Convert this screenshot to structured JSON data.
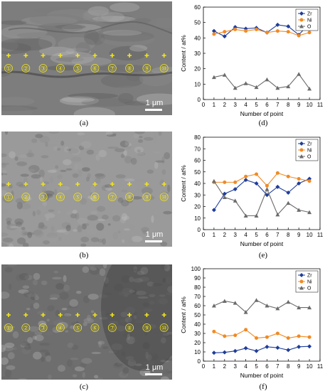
{
  "panel_labels": [
    "(a)",
    "(b)",
    "(c)",
    "(d)",
    "(e)",
    "(f)"
  ],
  "sem_images": [
    {
      "scale_bar": "1 μm",
      "point_labels": [
        "①",
        "②",
        "③",
        "④",
        "⑤",
        "⑥",
        "⑦",
        "⑧",
        "⑨",
        "⑩"
      ]
    },
    {
      "scale_bar": "1 μm",
      "point_labels": [
        "①",
        "②",
        "③",
        "④",
        "⑤",
        "⑥",
        "⑦",
        "⑧",
        "⑨",
        "⑩"
      ]
    },
    {
      "scale_bar": "1 μm",
      "point_labels": [
        "①",
        "②",
        "③",
        "④",
        "⑤",
        "⑥",
        "⑦",
        "⑧",
        "⑨",
        "⑩"
      ]
    }
  ],
  "colors": {
    "Zr": "#1f3d99",
    "Ni": "#f08a24",
    "O": "#6b6b6b",
    "marker": "#f2e51c"
  },
  "chart_data": [
    {
      "type": "line",
      "xlabel": "Number of point",
      "ylabel": "Content / at%",
      "xlim": [
        0,
        11
      ],
      "ylim": [
        0,
        60
      ],
      "xticks": [
        0,
        1,
        2,
        3,
        4,
        5,
        6,
        7,
        8,
        9,
        10,
        11
      ],
      "yticks": [
        0,
        10,
        20,
        30,
        40,
        50,
        60
      ],
      "legend_position": "top-right",
      "x": [
        1,
        2,
        3,
        4,
        5,
        6,
        7,
        8,
        9,
        10
      ],
      "series": [
        {
          "name": "Zr",
          "marker": "diamond",
          "values": [
            44.5,
            41,
            47,
            46,
            46.5,
            43.5,
            48.5,
            47.5,
            42,
            49.5
          ]
        },
        {
          "name": "Ni",
          "marker": "circle",
          "values": [
            42.5,
            44,
            45.5,
            44.5,
            45.5,
            43.5,
            44.5,
            44,
            41.5,
            43.5
          ]
        },
        {
          "name": "O",
          "marker": "triangle",
          "values": [
            14.5,
            16,
            7.5,
            10.5,
            8,
            13,
            7.5,
            8.5,
            16.5,
            7
          ]
        }
      ]
    },
    {
      "type": "line",
      "xlabel": "Number of point",
      "ylabel": "Content / at%",
      "xlim": [
        0,
        11
      ],
      "ylim": [
        0,
        80
      ],
      "xticks": [
        0,
        1,
        2,
        3,
        4,
        5,
        6,
        7,
        8,
        9,
        10,
        11
      ],
      "yticks": [
        0,
        10,
        20,
        30,
        40,
        50,
        60,
        70,
        80
      ],
      "legend_position": "top-right",
      "x": [
        1,
        2,
        3,
        4,
        5,
        6,
        7,
        8,
        9,
        10
      ],
      "series": [
        {
          "name": "Zr",
          "marker": "diamond",
          "values": [
            17,
            31,
            35,
            43,
            40,
            30,
            37,
            32,
            40,
            44
          ]
        },
        {
          "name": "Ni",
          "marker": "circle",
          "values": [
            41,
            41,
            41,
            46,
            48,
            38,
            49,
            46,
            44,
            42
          ]
        },
        {
          "name": "O",
          "marker": "triangle",
          "values": [
            42,
            28,
            25,
            12,
            12,
            35,
            13,
            23,
            17,
            15
          ]
        }
      ]
    },
    {
      "type": "line",
      "xlabel": "Number of point",
      "ylabel": "Content / at%",
      "xlim": [
        0,
        11
      ],
      "ylim": [
        0,
        100
      ],
      "xticks": [
        0,
        1,
        2,
        3,
        4,
        5,
        6,
        7,
        8,
        9,
        10,
        11
      ],
      "yticks": [
        0,
        10,
        20,
        30,
        40,
        50,
        60,
        70,
        80,
        90,
        100
      ],
      "legend_position": "top-right",
      "x": [
        1,
        2,
        3,
        4,
        5,
        6,
        7,
        8,
        9,
        10
      ],
      "series": [
        {
          "name": "Zr",
          "marker": "diamond",
          "values": [
            9,
            9.5,
            11,
            14,
            11,
            15.5,
            14.5,
            12,
            15.5,
            16
          ]
        },
        {
          "name": "Ni",
          "marker": "circle",
          "values": [
            32,
            27,
            28,
            34,
            25,
            26,
            30,
            25,
            27,
            26
          ]
        },
        {
          "name": "O",
          "marker": "triangle",
          "values": [
            60,
            65,
            63,
            53,
            66,
            60,
            57,
            64,
            58,
            58
          ]
        }
      ]
    }
  ]
}
